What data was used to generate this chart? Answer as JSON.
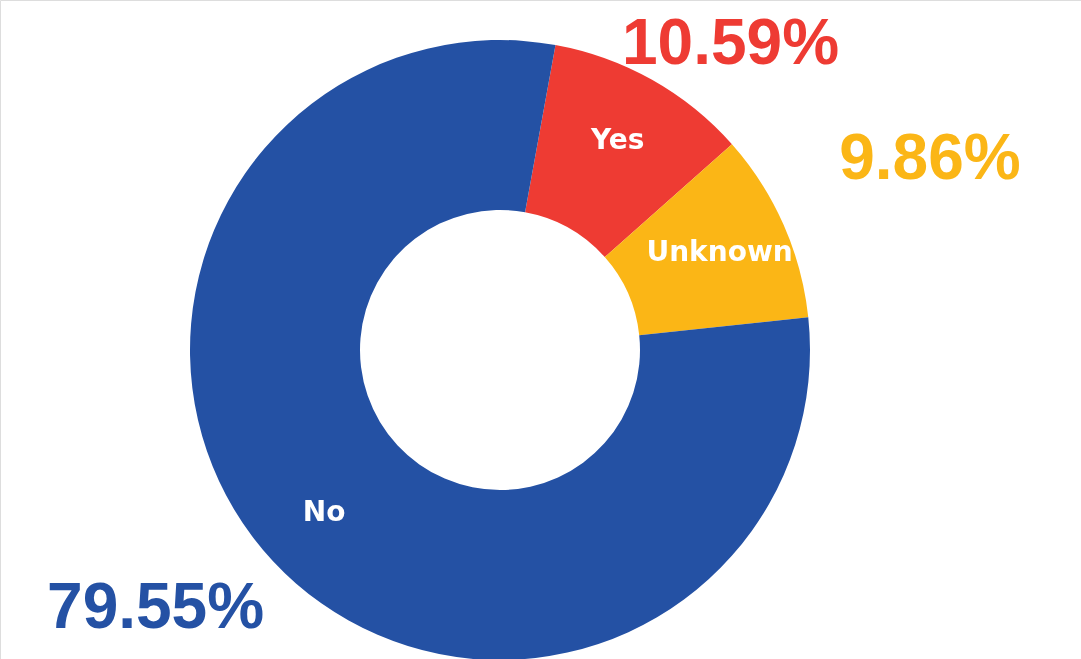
{
  "chart_data": {
    "type": "donut",
    "categories": [
      "Yes",
      "Unknown",
      "No"
    ],
    "values": [
      10.59,
      9.86,
      79.55
    ],
    "colors": [
      "#ee3b33",
      "#fbb616",
      "#2451a4"
    ],
    "value_labels": [
      "10.59%",
      "9.86%",
      "79.55%"
    ]
  }
}
